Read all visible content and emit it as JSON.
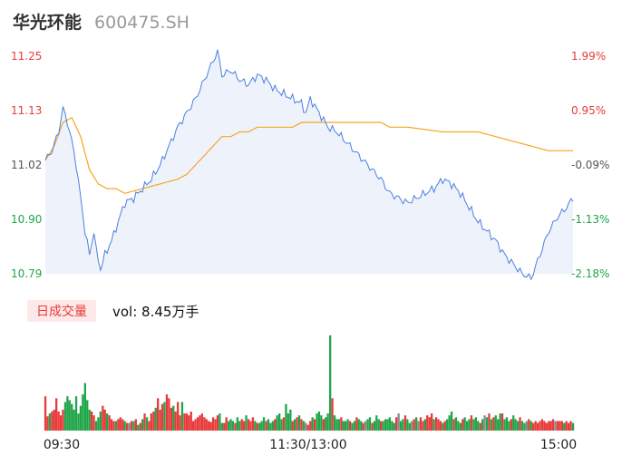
{
  "header": {
    "name": "华光环能",
    "code": "600475.SH"
  },
  "volume_panel": {
    "tag": "日成交量",
    "vol_text": "vol: 8.45万手"
  },
  "colors": {
    "price_line": "#4a7fe0",
    "avg_line": "#f5a623",
    "up": "#e83a3a",
    "down": "#21a54a",
    "flat": "#8a8a8a",
    "area": "#eef3fb"
  },
  "chart_data": [
    {
      "type": "line",
      "title": "",
      "y_ticks_left": [
        "11.25",
        "11.13",
        "11.02",
        "10.90",
        "10.79"
      ],
      "y_ticks_right": [
        "1.99%",
        "0.95%",
        "-0.09%",
        "-1.13%",
        "-2.18%"
      ],
      "x_ticks": [
        "09:30",
        "11:30/13:00",
        "15:00"
      ],
      "ylim": [
        10.79,
        11.25
      ],
      "prev_close": 11.03,
      "points": 240,
      "series": [
        {
          "role": "price",
          "anchors": [
            [
              0,
              11.03
            ],
            [
              3,
              11.05
            ],
            [
              6,
              11.09
            ],
            [
              8,
              11.14
            ],
            [
              10,
              11.11
            ],
            [
              12,
              11.07
            ],
            [
              14,
              11.02
            ],
            [
              16,
              10.95
            ],
            [
              18,
              10.88
            ],
            [
              20,
              10.83
            ],
            [
              22,
              10.88
            ],
            [
              23,
              10.84
            ],
            [
              25,
              10.8
            ],
            [
              27,
              10.83
            ],
            [
              30,
              10.86
            ],
            [
              33,
              10.9
            ],
            [
              36,
              10.94
            ],
            [
              40,
              10.95
            ],
            [
              44,
              10.97
            ],
            [
              48,
              10.99
            ],
            [
              52,
              11.02
            ],
            [
              56,
              11.06
            ],
            [
              60,
              11.1
            ],
            [
              64,
              11.13
            ],
            [
              68,
              11.16
            ],
            [
              72,
              11.2
            ],
            [
              76,
              11.24
            ],
            [
              78,
              11.26
            ],
            [
              80,
              11.21
            ],
            [
              84,
              11.22
            ],
            [
              88,
              11.2
            ],
            [
              92,
              11.19
            ],
            [
              96,
              11.21
            ],
            [
              100,
              11.2
            ],
            [
              104,
              11.18
            ],
            [
              108,
              11.17
            ],
            [
              112,
              11.16
            ],
            [
              116,
              11.15
            ],
            [
              118,
              11.13
            ],
            [
              120,
              11.16
            ],
            [
              124,
              11.13
            ],
            [
              128,
              11.1
            ],
            [
              132,
              11.09
            ],
            [
              136,
              11.07
            ],
            [
              140,
              11.05
            ],
            [
              144,
              11.03
            ],
            [
              148,
              11.01
            ],
            [
              152,
              10.99
            ],
            [
              156,
              10.96
            ],
            [
              160,
              10.95
            ],
            [
              164,
              10.94
            ],
            [
              168,
              10.95
            ],
            [
              172,
              10.96
            ],
            [
              176,
              10.97
            ],
            [
              180,
              10.99
            ],
            [
              184,
              10.98
            ],
            [
              188,
              10.96
            ],
            [
              192,
              10.93
            ],
            [
              196,
              10.9
            ],
            [
              200,
              10.88
            ],
            [
              204,
              10.86
            ],
            [
              208,
              10.83
            ],
            [
              212,
              10.81
            ],
            [
              216,
              10.79
            ],
            [
              220,
              10.78
            ],
            [
              224,
              10.83
            ],
            [
              228,
              10.88
            ],
            [
              232,
              10.91
            ],
            [
              236,
              10.93
            ],
            [
              239,
              10.95
            ]
          ]
        },
        {
          "role": "average",
          "anchors": [
            [
              0,
              11.03
            ],
            [
              4,
              11.06
            ],
            [
              8,
              11.11
            ],
            [
              12,
              11.12
            ],
            [
              16,
              11.08
            ],
            [
              20,
              11.01
            ],
            [
              24,
              10.98
            ],
            [
              28,
              10.97
            ],
            [
              32,
              10.97
            ],
            [
              36,
              10.96
            ],
            [
              44,
              10.97
            ],
            [
              52,
              10.98
            ],
            [
              60,
              10.99
            ],
            [
              64,
              11.0
            ],
            [
              68,
              11.02
            ],
            [
              72,
              11.04
            ],
            [
              76,
              11.06
            ],
            [
              80,
              11.08
            ],
            [
              84,
              11.08
            ],
            [
              88,
              11.09
            ],
            [
              92,
              11.09
            ],
            [
              96,
              11.1
            ],
            [
              104,
              11.1
            ],
            [
              112,
              11.1
            ],
            [
              116,
              11.11
            ],
            [
              124,
              11.11
            ],
            [
              136,
              11.11
            ],
            [
              144,
              11.11
            ],
            [
              152,
              11.11
            ],
            [
              156,
              11.1
            ],
            [
              164,
              11.1
            ],
            [
              180,
              11.09
            ],
            [
              196,
              11.09
            ],
            [
              204,
              11.08
            ],
            [
              212,
              11.07
            ],
            [
              220,
              11.06
            ],
            [
              228,
              11.05
            ],
            [
              239,
              11.05
            ]
          ]
        }
      ]
    },
    {
      "type": "bar",
      "title": "",
      "description_volume_scale": "relative",
      "volume_max": 100,
      "volumes": [
        36,
        15,
        18,
        20,
        22,
        34,
        20,
        16,
        22,
        30,
        36,
        32,
        28,
        22,
        36,
        18,
        26,
        38,
        50,
        32,
        22,
        20,
        16,
        10,
        14,
        20,
        26,
        22,
        18,
        16,
        12,
        10,
        10,
        12,
        14,
        12,
        10,
        8,
        8,
        10,
        10,
        12,
        6,
        8,
        12,
        18,
        14,
        10,
        18,
        20,
        24,
        34,
        22,
        28,
        30,
        38,
        34,
        24,
        26,
        20,
        30,
        16,
        30,
        18,
        18,
        16,
        20,
        10,
        12,
        14,
        16,
        18,
        14,
        12,
        10,
        9,
        14,
        12,
        16,
        18,
        8,
        8,
        14,
        10,
        12,
        10,
        8,
        14,
        10,
        12,
        10,
        16,
        12,
        10,
        14,
        10,
        8,
        8,
        10,
        14,
        10,
        12,
        8,
        10,
        12,
        16,
        18,
        12,
        14,
        28,
        18,
        22,
        10,
        12,
        14,
        16,
        12,
        10,
        8,
        6,
        10,
        14,
        12,
        18,
        20,
        16,
        12,
        14,
        18,
        100,
        34,
        16,
        12,
        12,
        14,
        10,
        10,
        12,
        10,
        8,
        10,
        14,
        12,
        10,
        8,
        10,
        12,
        14,
        8,
        10,
        16,
        12,
        10,
        10,
        12,
        12,
        14,
        10,
        8,
        14,
        18,
        10,
        12,
        16,
        12,
        8,
        10,
        12,
        14,
        10,
        14,
        10,
        12,
        16,
        14,
        18,
        12,
        14,
        12,
        10,
        8,
        10,
        12,
        16,
        20,
        12,
        14,
        10,
        8,
        12,
        14,
        10,
        12,
        16,
        12,
        14,
        10,
        8,
        12,
        16,
        14,
        18,
        12,
        14,
        16,
        12,
        18,
        18,
        12,
        14,
        10,
        12,
        16,
        12,
        10,
        14,
        10,
        8,
        10,
        12,
        10,
        8,
        10,
        8,
        10,
        12,
        10,
        8,
        10,
        10,
        12,
        10,
        10,
        10,
        10,
        8,
        10,
        8,
        10,
        8
      ],
      "directions": "computed from price series: up=red, down=green"
    }
  ]
}
